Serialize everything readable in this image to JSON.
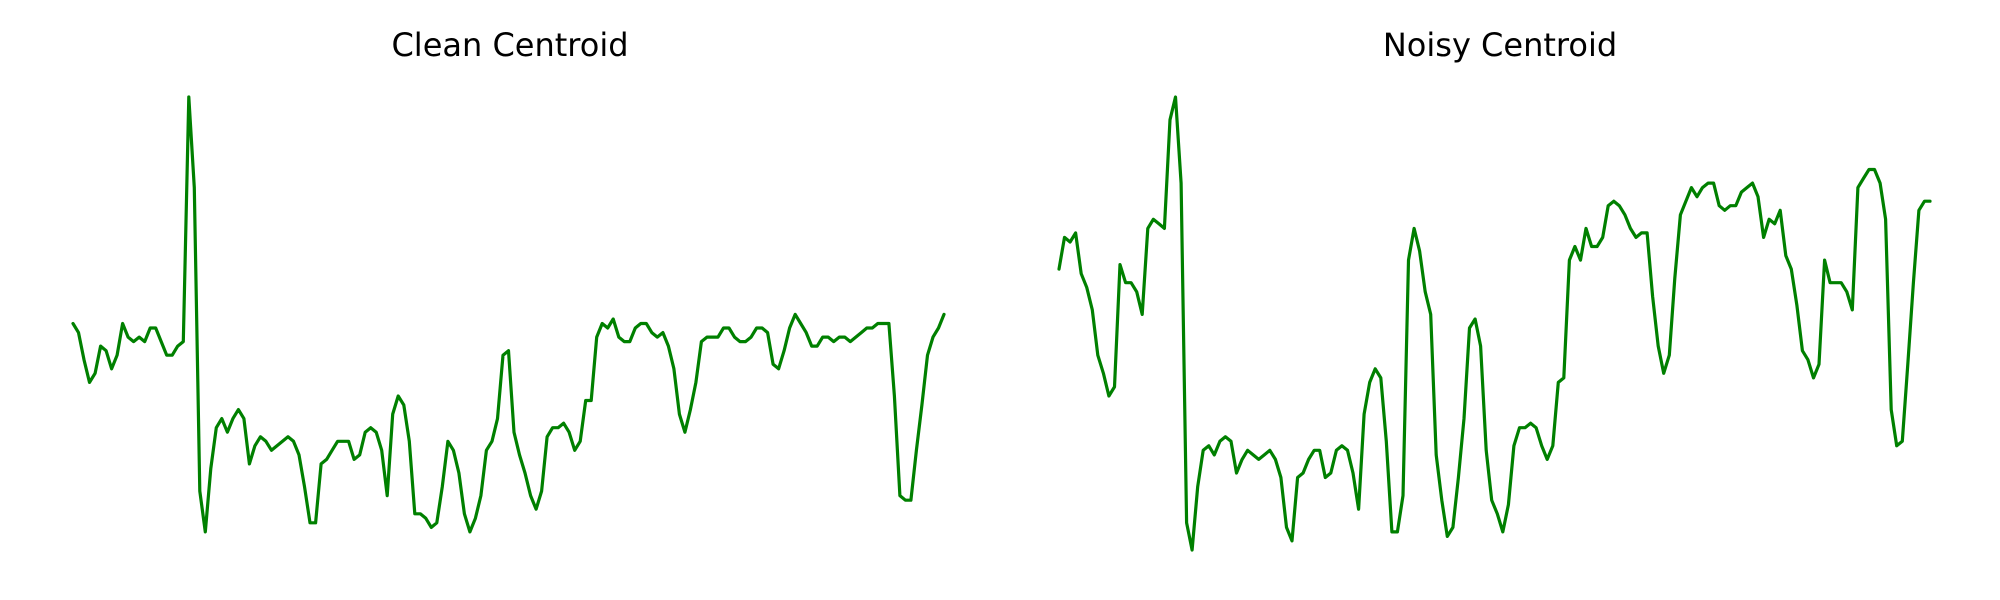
{
  "chart_data": [
    {
      "type": "line",
      "title": "Clean Centroid",
      "axes_visible": false,
      "grid": false,
      "color": "#008000",
      "ylim": [
        0,
        1
      ],
      "series": [
        {
          "values": [
            0.5,
            0.48,
            0.42,
            0.37,
            0.39,
            0.45,
            0.44,
            0.4,
            0.43,
            0.5,
            0.47,
            0.46,
            0.47,
            0.46,
            0.49,
            0.49,
            0.46,
            0.43,
            0.43,
            0.45,
            0.46,
            1.0,
            0.8,
            0.13,
            0.04,
            0.18,
            0.27,
            0.29,
            0.26,
            0.29,
            0.31,
            0.29,
            0.19,
            0.23,
            0.25,
            0.24,
            0.22,
            0.23,
            0.24,
            0.25,
            0.24,
            0.21,
            0.14,
            0.06,
            0.06,
            0.19,
            0.2,
            0.22,
            0.24,
            0.24,
            0.24,
            0.2,
            0.21,
            0.26,
            0.27,
            0.26,
            0.22,
            0.12,
            0.3,
            0.34,
            0.32,
            0.24,
            0.08,
            0.08,
            0.07,
            0.05,
            0.06,
            0.14,
            0.24,
            0.22,
            0.17,
            0.08,
            0.04,
            0.07,
            0.12,
            0.22,
            0.24,
            0.29,
            0.43,
            0.44,
            0.26,
            0.21,
            0.17,
            0.12,
            0.09,
            0.13,
            0.25,
            0.27,
            0.27,
            0.28,
            0.26,
            0.22,
            0.24,
            0.33,
            0.33,
            0.47,
            0.5,
            0.49,
            0.51,
            0.47,
            0.46,
            0.46,
            0.49,
            0.5,
            0.5,
            0.48,
            0.47,
            0.48,
            0.45,
            0.4,
            0.3,
            0.26,
            0.31,
            0.37,
            0.46,
            0.47,
            0.47,
            0.47,
            0.49,
            0.49,
            0.47,
            0.46,
            0.46,
            0.47,
            0.49,
            0.49,
            0.48,
            0.41,
            0.4,
            0.44,
            0.49,
            0.52,
            0.5,
            0.48,
            0.45,
            0.45,
            0.47,
            0.47,
            0.46,
            0.47,
            0.47,
            0.46,
            0.47,
            0.48,
            0.49,
            0.49,
            0.5,
            0.5,
            0.5,
            0.34,
            0.12,
            0.11,
            0.11,
            0.22,
            0.32,
            0.43,
            0.47,
            0.49,
            0.52
          ]
        }
      ]
    },
    {
      "type": "line",
      "title": "Noisy Centroid",
      "axes_visible": false,
      "grid": false,
      "color": "#008000",
      "ylim": [
        0,
        1
      ],
      "series": [
        {
          "values": [
            0.62,
            0.69,
            0.68,
            0.7,
            0.61,
            0.58,
            0.53,
            0.43,
            0.39,
            0.34,
            0.36,
            0.63,
            0.59,
            0.59,
            0.57,
            0.52,
            0.71,
            0.73,
            0.72,
            0.71,
            0.95,
            1.0,
            0.81,
            0.06,
            0.0,
            0.14,
            0.22,
            0.23,
            0.21,
            0.24,
            0.25,
            0.24,
            0.17,
            0.2,
            0.22,
            0.21,
            0.2,
            0.21,
            0.22,
            0.2,
            0.16,
            0.05,
            0.02,
            0.16,
            0.17,
            0.2,
            0.22,
            0.22,
            0.16,
            0.17,
            0.22,
            0.23,
            0.22,
            0.17,
            0.09,
            0.3,
            0.37,
            0.4,
            0.38,
            0.24,
            0.04,
            0.04,
            0.12,
            0.64,
            0.71,
            0.66,
            0.57,
            0.52,
            0.21,
            0.11,
            0.03,
            0.05,
            0.16,
            0.29,
            0.49,
            0.51,
            0.45,
            0.22,
            0.11,
            0.08,
            0.04,
            0.1,
            0.23,
            0.27,
            0.27,
            0.28,
            0.27,
            0.23,
            0.2,
            0.23,
            0.37,
            0.38,
            0.64,
            0.67,
            0.64,
            0.71,
            0.67,
            0.67,
            0.69,
            0.76,
            0.77,
            0.76,
            0.74,
            0.71,
            0.69,
            0.7,
            0.7,
            0.56,
            0.45,
            0.39,
            0.43,
            0.6,
            0.74,
            0.77,
            0.8,
            0.78,
            0.8,
            0.81,
            0.81,
            0.76,
            0.75,
            0.76,
            0.76,
            0.79,
            0.8,
            0.81,
            0.78,
            0.69,
            0.73,
            0.72,
            0.75,
            0.65,
            0.62,
            0.54,
            0.44,
            0.42,
            0.38,
            0.41,
            0.64,
            0.59,
            0.59,
            0.59,
            0.57,
            0.53,
            0.8,
            0.82,
            0.84,
            0.84,
            0.81,
            0.73,
            0.31,
            0.23,
            0.24,
            0.41,
            0.59,
            0.75,
            0.77,
            0.77
          ]
        }
      ]
    }
  ]
}
